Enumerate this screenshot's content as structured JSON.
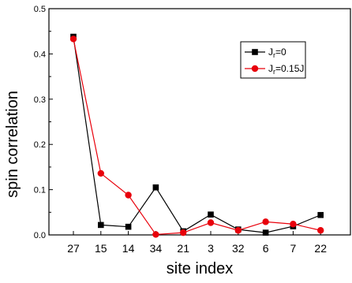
{
  "chart_data": {
    "type": "line",
    "title": "",
    "xlabel": "site index",
    "ylabel": "spin correlation",
    "categories": [
      "27",
      "15",
      "14",
      "34",
      "21",
      "3",
      "32",
      "6",
      "7",
      "22"
    ],
    "ylim": [
      0,
      0.5
    ],
    "yticks": [
      "0.0",
      "0.1",
      "0.2",
      "0.3",
      "0.4",
      "0.5"
    ],
    "grid": false,
    "legend_position": "top-right",
    "series": [
      {
        "name": "J_r=0",
        "label_main": "J",
        "label_sub": "r",
        "label_rest": "=0",
        "color": "#000000",
        "marker": "square",
        "values": [
          0.438,
          0.022,
          0.018,
          0.105,
          0.008,
          0.045,
          0.012,
          0.005,
          0.019,
          0.044
        ]
      },
      {
        "name": "J_r=0.15J",
        "label_main": "J",
        "label_sub": "r",
        "label_rest": "=0.15J",
        "color": "#e8000b",
        "marker": "circle",
        "values": [
          0.433,
          0.136,
          0.088,
          0.001,
          0.005,
          0.027,
          0.01,
          0.029,
          0.024,
          0.01
        ]
      }
    ]
  }
}
